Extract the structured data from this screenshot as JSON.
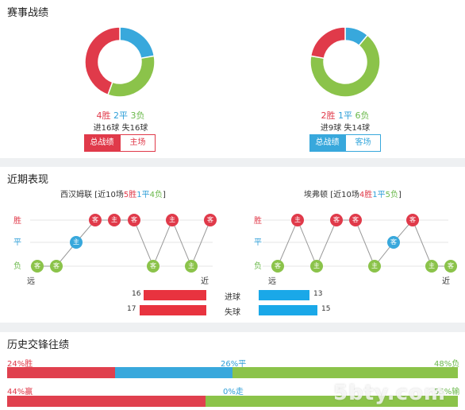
{
  "sections": {
    "record": "赛事战绩",
    "recent": "近期表现",
    "history": "历史交锋往绩"
  },
  "colors": {
    "win": "#e03a4a",
    "draw": "#38a8dc",
    "loss": "#8bc34a"
  },
  "home": {
    "wins": "4胜",
    "draws": "2平",
    "losses": "3负",
    "win_n": 4,
    "draw_n": 2,
    "loss_n": 3,
    "goals_for": "进16球",
    "goals_against": "失16球",
    "toggle_on": "总战绩",
    "toggle_off": "主场",
    "team_name": "西汉姆联",
    "recent_prefix": "[近10场",
    "recent_w": "5胜",
    "recent_d": "1平",
    "recent_l": "4负",
    "recent_suffix": "]",
    "form": [
      {
        "r": "W",
        "v": "客"
      },
      {
        "r": "L",
        "v": "主"
      },
      {
        "r": "W",
        "v": "主"
      },
      {
        "r": "L",
        "v": "客"
      },
      {
        "r": "W",
        "v": "客"
      },
      {
        "r": "W",
        "v": "主"
      },
      {
        "r": "W",
        "v": "客"
      },
      {
        "r": "D",
        "v": "主"
      },
      {
        "r": "L",
        "v": "客"
      },
      {
        "r": "L",
        "v": "客"
      }
    ]
  },
  "away": {
    "wins": "2胜",
    "draws": "1平",
    "losses": "6负",
    "win_n": 2,
    "draw_n": 1,
    "loss_n": 6,
    "goals_for": "进9球",
    "goals_against": "失14球",
    "toggle_on": "总战绩",
    "toggle_off": "客场",
    "team_name": "埃弗顿",
    "recent_prefix": "[近10场",
    "recent_w": "4胜",
    "recent_d": "1平",
    "recent_l": "5负",
    "recent_suffix": "]",
    "form": [
      {
        "r": "L",
        "v": "客"
      },
      {
        "r": "L",
        "v": "主"
      },
      {
        "r": "W",
        "v": "客"
      },
      {
        "r": "D",
        "v": "客"
      },
      {
        "r": "L",
        "v": "主"
      },
      {
        "r": "W",
        "v": "客"
      },
      {
        "r": "W",
        "v": "客"
      },
      {
        "r": "L",
        "v": "主"
      },
      {
        "r": "W",
        "v": "主"
      },
      {
        "r": "L",
        "v": "客"
      }
    ]
  },
  "axis": {
    "win": "胜",
    "draw": "平",
    "loss": "负",
    "far": "远",
    "near": "近"
  },
  "goals_compare": {
    "scored_label": "进球",
    "conceded_label": "失球",
    "home_scored": 16,
    "away_scored": 13,
    "home_conceded": 17,
    "away_conceded": 15
  },
  "history": {
    "row1": {
      "left": "24%胜",
      "mid": "26%平",
      "right": "48%负",
      "a": 24,
      "b": 26,
      "c": 48
    },
    "row2": {
      "left": "44%赢",
      "mid": "0%走",
      "right": "55%输",
      "a": 44,
      "b": 0,
      "c": 55
    }
  },
  "watermark": "5bty.com"
}
